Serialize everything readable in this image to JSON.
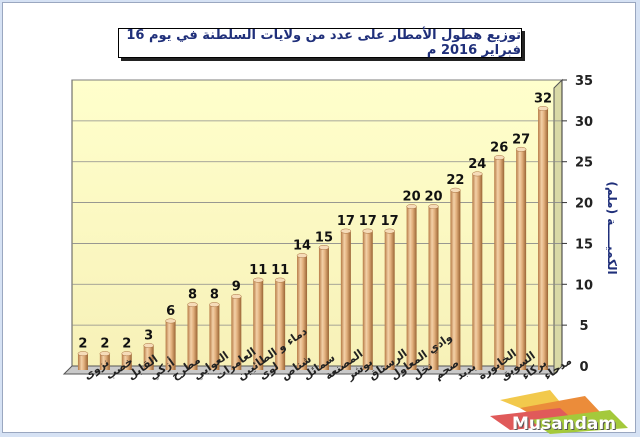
{
  "chart_data": {
    "type": "bar",
    "title": "توزيع هطول الأمطار على عدد من ولايات السلطنة في يوم 16 فبراير 2016 م",
    "ylabel": "الكميـــــة (ملم)",
    "xlabel": "",
    "ylim": [
      0,
      35
    ],
    "yticks": [
      0,
      5,
      10,
      15,
      20,
      25,
      30,
      35
    ],
    "grid": true,
    "categories": [
      "نزوى",
      "خصب",
      "القابل",
      "أزكي",
      "مطرح",
      "العوابي",
      "العامرات",
      "دماء و الطائيين",
      "لوى",
      "شناص",
      "سمائل",
      "المصنعة",
      "بوشر",
      "الرستاق",
      "وادي المعاول",
      "نخل",
      "صحم",
      "بدبد",
      "الخابورة",
      "السويق",
      "بركاء",
      "مدحاء"
    ],
    "values": [
      2,
      2,
      2,
      3,
      6,
      8,
      8,
      9,
      11,
      11,
      14,
      15,
      17,
      17,
      17,
      20,
      20,
      22,
      24,
      26,
      27,
      32
    ],
    "bar_color": "#d9a877",
    "plot_background": "#ffffcc"
  },
  "watermark": {
    "text": "Musandam"
  }
}
